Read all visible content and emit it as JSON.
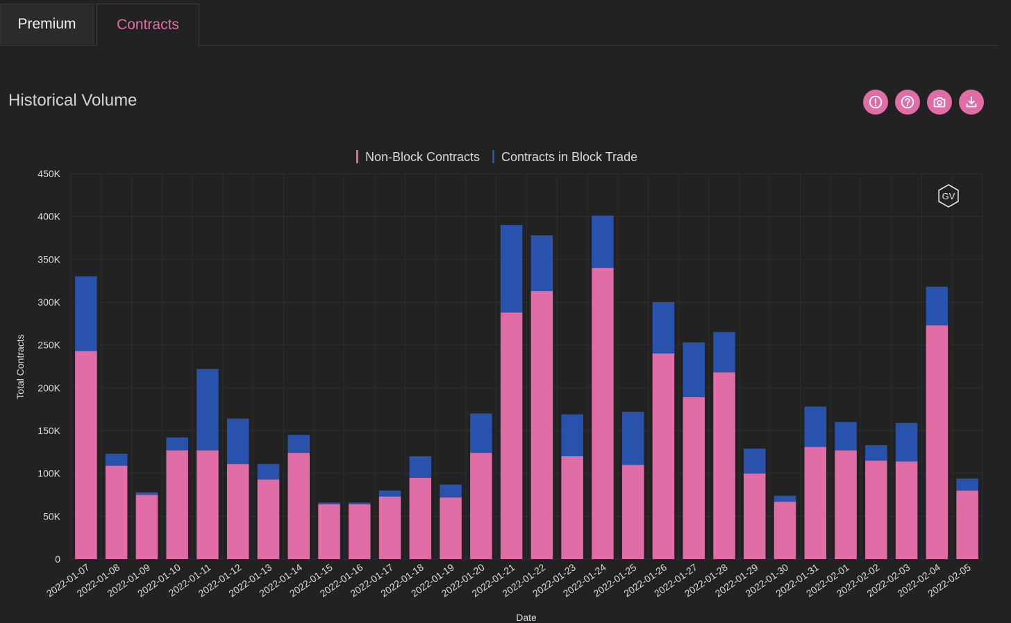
{
  "tabs": [
    {
      "label": "Premium",
      "active": false
    },
    {
      "label": "Contracts",
      "active": true
    }
  ],
  "page": {
    "title": "Historical Volume"
  },
  "toolbar": {
    "buttons": [
      {
        "icon": "info-icon"
      },
      {
        "icon": "help-icon"
      },
      {
        "icon": "camera-icon"
      },
      {
        "icon": "download-icon"
      }
    ]
  },
  "colors": {
    "accent": "#e06da6",
    "non_block": "#e06da6",
    "block": "#2852ac",
    "background": "#222222",
    "grid": "#2e2e2e"
  },
  "watermark": {
    "text": "GV"
  },
  "chart_data": {
    "type": "bar",
    "stacked": true,
    "title": "",
    "xlabel": "Date",
    "ylabel": "Total Contracts",
    "ylim": [
      0,
      450000
    ],
    "yticks": [
      0,
      50000,
      100000,
      150000,
      200000,
      250000,
      300000,
      350000,
      400000,
      450000
    ],
    "ytick_labels": [
      "0",
      "50K",
      "100K",
      "150K",
      "200K",
      "250K",
      "300K",
      "350K",
      "400K",
      "450K"
    ],
    "legend_position": "top-center",
    "grid": true,
    "categories": [
      "2022-01-07",
      "2022-01-08",
      "2022-01-09",
      "2022-01-10",
      "2022-01-11",
      "2022-01-12",
      "2022-01-13",
      "2022-01-14",
      "2022-01-15",
      "2022-01-16",
      "2022-01-17",
      "2022-01-18",
      "2022-01-19",
      "2022-01-20",
      "2022-01-21",
      "2022-01-22",
      "2022-01-23",
      "2022-01-24",
      "2022-01-25",
      "2022-01-26",
      "2022-01-27",
      "2022-01-28",
      "2022-01-29",
      "2022-01-30",
      "2022-01-31",
      "2022-02-01",
      "2022-02-02",
      "2022-02-03",
      "2022-02-04",
      "2022-02-05"
    ],
    "series": [
      {
        "name": "Non-Block Contracts",
        "color": "#e06da6",
        "values": [
          243000,
          109000,
          75000,
          127000,
          127000,
          111000,
          93000,
          124000,
          64000,
          64000,
          73000,
          95000,
          72000,
          124000,
          288000,
          313000,
          120000,
          340000,
          110000,
          240000,
          189000,
          218000,
          100000,
          67000,
          131000,
          127000,
          115000,
          114000,
          273000,
          80000
        ]
      },
      {
        "name": "Contracts in Block Trade",
        "color": "#2852ac",
        "values": [
          87000,
          14000,
          3000,
          15000,
          95000,
          53000,
          18000,
          21000,
          2000,
          2000,
          7000,
          25000,
          15000,
          46000,
          102000,
          65000,
          49000,
          61000,
          62000,
          60000,
          64000,
          47000,
          29000,
          7000,
          47000,
          33000,
          18000,
          45000,
          45000,
          14000
        ]
      }
    ]
  }
}
